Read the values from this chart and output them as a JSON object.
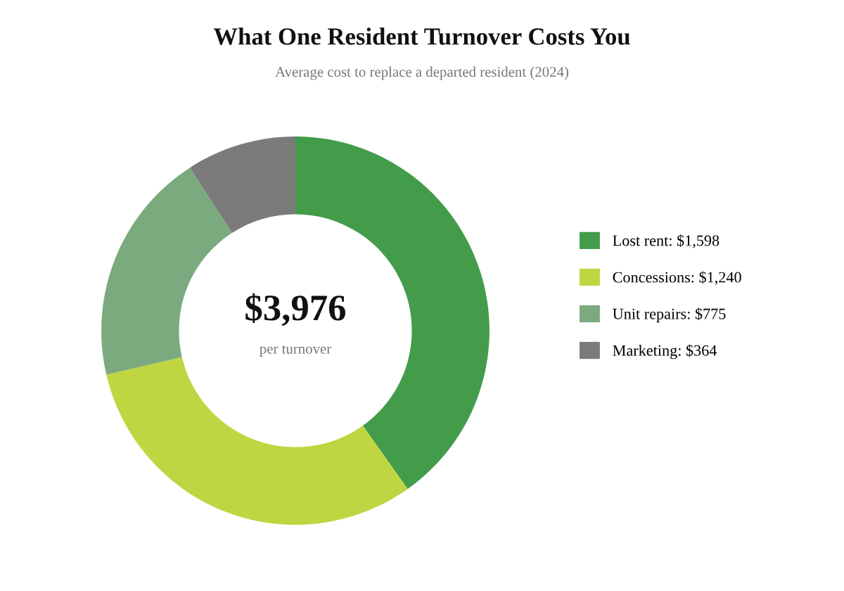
{
  "chart_data": {
    "type": "donut",
    "title": "What One Resident Turnover Costs You",
    "subtitle": "Average cost to replace a departed resident (2024)",
    "categories": [
      "Lost rent: $1,598",
      "Concessions: $1,240",
      "Unit repairs: $775",
      "Marketing: $364"
    ],
    "values": [
      1598,
      1240,
      775,
      364
    ],
    "colors": [
      "#439c4a",
      "#bfd642",
      "#7aaa7e",
      "#7b7b7b"
    ],
    "annotations": [
      "$3,976",
      "per turnover"
    ],
    "legend": "right"
  }
}
